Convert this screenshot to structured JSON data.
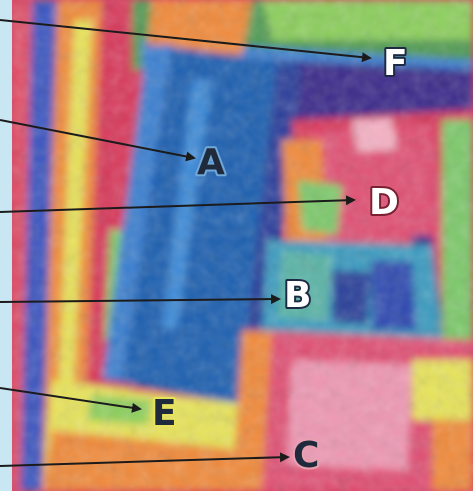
{
  "figure": {
    "labels": [
      {
        "id": "F",
        "text": "F",
        "fill": "#ffffff",
        "stroke": "#1e2a44"
      },
      {
        "id": "A",
        "text": "A",
        "fill": "#1f2a3c",
        "stroke": "#6fa9d9"
      },
      {
        "id": "D",
        "text": "D",
        "fill": "#ffffff",
        "stroke": "#7a2030"
      },
      {
        "id": "B",
        "text": "B",
        "fill": "#ffffff",
        "stroke": "#1e2a44"
      },
      {
        "id": "E",
        "text": "E",
        "fill": "#1f2a3c",
        "stroke": "#e7e35a"
      },
      {
        "id": "C",
        "text": "C",
        "fill": "#1f2a3c",
        "stroke": "#e9a0b0"
      }
    ],
    "colors": {
      "border": "#c9e6f3",
      "arrow": "#1b1b1b",
      "hot": "#d8375a",
      "hot_light": "#e88aa8",
      "warm": "#f08a3a",
      "mid": "#e7e35a",
      "cool_green": "#7bc96a",
      "cool": "#3a7fd0",
      "cold": "#1d5fb0",
      "coldest": "#3b2b8a"
    }
  }
}
